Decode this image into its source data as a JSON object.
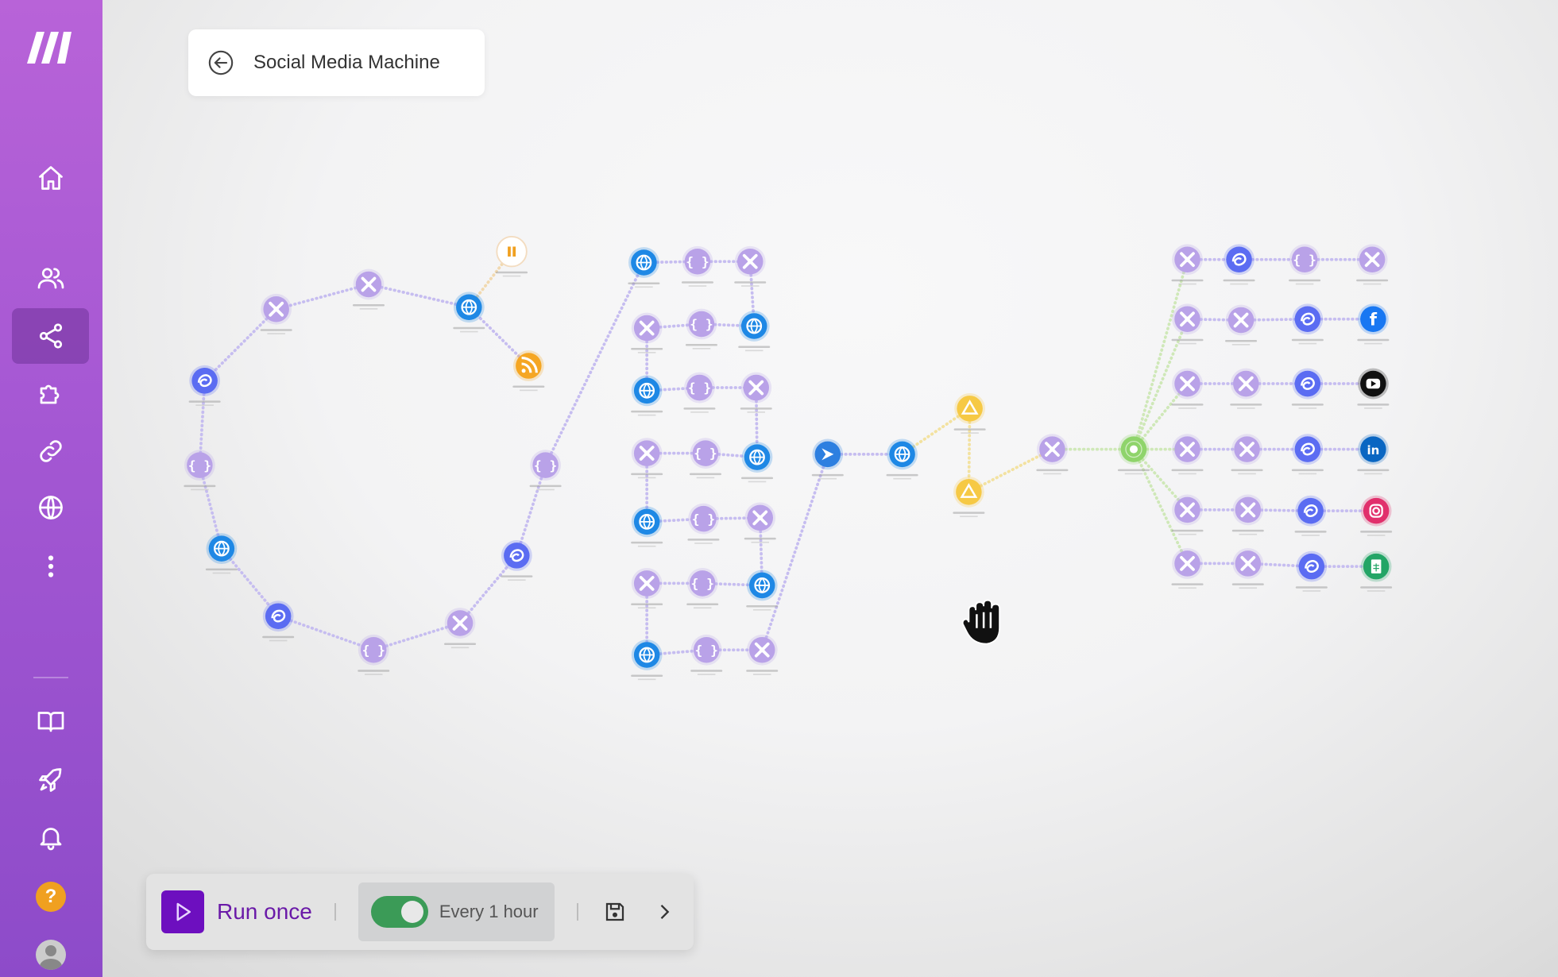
{
  "scenario": {
    "title": "Social Media Machine"
  },
  "sidebar": {
    "items": [
      {
        "icon": "home-icon"
      },
      {
        "icon": "users-icon"
      },
      {
        "icon": "share-icon",
        "active": true
      },
      {
        "icon": "puzzle-icon"
      },
      {
        "icon": "link-icon"
      },
      {
        "icon": "globe-icon"
      },
      {
        "icon": "more-icon"
      },
      {
        "icon": "book-icon"
      },
      {
        "icon": "rocket-icon"
      },
      {
        "icon": "bell-icon"
      },
      {
        "icon": "help-icon"
      },
      {
        "icon": "avatar"
      }
    ]
  },
  "toolbar": {
    "run_label": "Run once",
    "schedule_label": "Every 1 hour",
    "schedule_enabled": true
  },
  "colors": {
    "sidebar_top": "#b863d8",
    "sidebar_bottom": "#8d4bc9",
    "run_button": "#6d0fbf",
    "toggle_on": "#3b9b57",
    "tools_module": "#b9a2e8",
    "http_module": "#1e88e5",
    "openai_module": "#5b6cf2",
    "rss_module": "#f5a623",
    "drive_module": "#f6c945",
    "router_module": "#8fd46b",
    "facebook": "#1877f2",
    "youtube": "#111111",
    "linkedin": "#0a66c2",
    "instagram": "#e1306c",
    "sheets": "#23a566"
  }
}
